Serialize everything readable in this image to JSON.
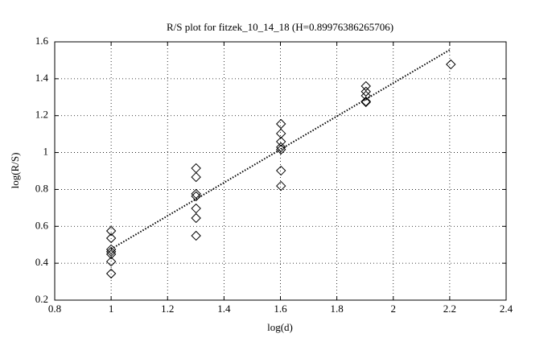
{
  "chart_data": {
    "type": "scatter",
    "title": "R/S plot for fitzek_10_14_18 (H=0.89976386265706)",
    "x_label": "log(d)",
    "y_label": "log(R/S)",
    "xlim": [
      0.8,
      2.4
    ],
    "xticks": [
      0.8,
      1,
      1.2,
      1.4,
      1.6,
      1.8,
      2,
      2.2,
      2.4
    ],
    "ylim": [
      0.2,
      1.6
    ],
    "yticks": [
      0.2,
      0.4,
      0.6,
      0.8,
      1,
      1.2,
      1.4,
      1.6
    ],
    "grid": true,
    "series": [
      {
        "marker": "diamond",
        "color": "#000000",
        "x": [
          1,
          1,
          1,
          1,
          1,
          1,
          1,
          1.301,
          1.301,
          1.301,
          1.301,
          1.301,
          1.301,
          1.301,
          1.602,
          1.602,
          1.602,
          1.602,
          1.602,
          1.602,
          1.602,
          1.903,
          1.903,
          1.903,
          1.903,
          1.903,
          2.204
        ],
        "values": [
          0.575,
          0.536,
          0.475,
          0.462,
          0.449,
          0.409,
          0.344,
          0.915,
          0.867,
          0.776,
          0.763,
          0.697,
          0.645,
          0.549,
          1.155,
          1.103,
          1.059,
          1.029,
          1.016,
          0.902,
          0.819,
          1.36,
          1.33,
          1.308,
          1.277,
          1.273,
          1.478
        ]
      },
      {
        "style": "dotted",
        "color": "#000000",
        "x": [
          1,
          2.204
        ],
        "values": [
          0.477,
          1.56
        ]
      }
    ]
  }
}
